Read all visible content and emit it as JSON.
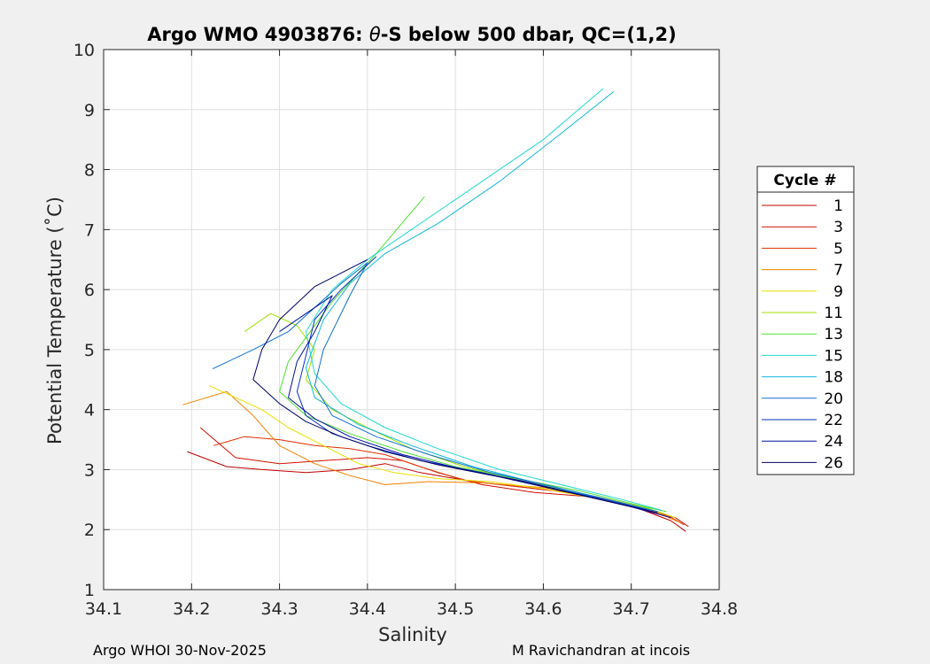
{
  "chart_data": {
    "type": "line",
    "title_prefix": "Argo WMO 4903876: ",
    "title_theta": "θ",
    "title_suffix": "-S below 500 dbar,  QC=(1,2)",
    "xlabel": "Salinity",
    "ylabel": "Potential Temperature (˚C)",
    "xlim": [
      34.1,
      34.8
    ],
    "ylim": [
      1,
      10
    ],
    "xticks": [
      34.1,
      34.2,
      34.3,
      34.4,
      34.5,
      34.6,
      34.7,
      34.8
    ],
    "yticks": [
      1,
      2,
      3,
      4,
      5,
      6,
      7,
      8,
      9,
      10
    ],
    "grid": true,
    "legend": {
      "title": "Cycle #",
      "placement": "right-outside",
      "entries": [
        "1",
        "3",
        "5",
        "7",
        "9",
        "11",
        "13",
        "15",
        "18",
        "20",
        "22",
        "24",
        "26"
      ]
    },
    "series": [
      {
        "name": "1",
        "color": "#c00000",
        "x": [
          34.195,
          34.24,
          34.28,
          34.33,
          34.38,
          34.42,
          34.46,
          34.52,
          34.58,
          34.64,
          34.7,
          34.745,
          34.762
        ],
        "y": [
          3.3,
          3.05,
          3.0,
          2.95,
          3.0,
          3.1,
          2.95,
          2.8,
          2.7,
          2.6,
          2.4,
          2.15,
          1.97
        ]
      },
      {
        "name": "3",
        "color": "#d01000",
        "x": [
          34.21,
          34.25,
          34.3,
          34.35,
          34.4,
          34.44,
          34.48,
          34.53,
          34.59,
          34.65,
          34.71,
          34.75,
          34.765
        ],
        "y": [
          3.7,
          3.2,
          3.1,
          3.15,
          3.2,
          3.15,
          2.95,
          2.75,
          2.62,
          2.55,
          2.35,
          2.2,
          2.05
        ]
      },
      {
        "name": "5",
        "color": "#e03000",
        "x": [
          34.225,
          34.26,
          34.3,
          34.34,
          34.38,
          34.42,
          34.46,
          34.51,
          34.57,
          34.63,
          34.69,
          34.74,
          34.76
        ],
        "y": [
          3.4,
          3.55,
          3.5,
          3.4,
          3.35,
          3.25,
          3.05,
          2.82,
          2.72,
          2.62,
          2.45,
          2.25,
          2.08
        ]
      },
      {
        "name": "7",
        "color": "#f08000",
        "x": [
          34.19,
          34.24,
          34.27,
          34.3,
          34.34,
          34.38,
          34.42,
          34.47,
          34.53,
          34.6,
          34.66,
          34.72,
          34.755
        ],
        "y": [
          4.08,
          4.3,
          3.9,
          3.4,
          3.1,
          2.9,
          2.75,
          2.8,
          2.78,
          2.7,
          2.55,
          2.35,
          2.12
        ]
      },
      {
        "name": "9",
        "color": "#e8e000",
        "x": [
          34.22,
          34.25,
          34.28,
          34.31,
          34.35,
          34.39,
          34.43,
          34.48,
          34.54,
          34.6,
          34.66,
          34.72,
          34.75
        ],
        "y": [
          4.4,
          4.2,
          4.0,
          3.7,
          3.4,
          3.1,
          2.95,
          2.85,
          2.8,
          2.68,
          2.52,
          2.35,
          2.2
        ]
      },
      {
        "name": "11",
        "color": "#a0e000",
        "x": [
          34.26,
          34.29,
          34.32,
          34.34,
          34.33,
          34.36,
          34.4,
          34.45,
          34.51,
          34.58,
          34.65,
          34.72,
          34.74
        ],
        "y": [
          5.3,
          5.6,
          5.4,
          5.0,
          4.5,
          4.0,
          3.7,
          3.35,
          3.05,
          2.8,
          2.58,
          2.35,
          2.25
        ]
      },
      {
        "name": "13",
        "color": "#50e030",
        "x": [
          34.465,
          34.41,
          34.36,
          34.33,
          34.31,
          34.3,
          34.33,
          34.38,
          34.44,
          34.5,
          34.57,
          34.64,
          34.71,
          34.74
        ],
        "y": [
          7.55,
          6.6,
          5.8,
          5.2,
          4.8,
          4.3,
          3.9,
          3.6,
          3.3,
          3.05,
          2.85,
          2.65,
          2.4,
          2.3
        ]
      },
      {
        "name": "15",
        "color": "#20d8d0",
        "x": [
          34.668,
          34.6,
          34.52,
          34.45,
          34.4,
          34.36,
          34.33,
          34.34,
          34.37,
          34.42,
          34.48,
          34.55,
          34.62,
          34.69,
          34.735
        ],
        "y": [
          9.35,
          8.5,
          7.7,
          7.0,
          6.5,
          6.0,
          5.3,
          4.6,
          4.1,
          3.7,
          3.35,
          3.0,
          2.75,
          2.5,
          2.32
        ]
      },
      {
        "name": "18",
        "color": "#10b8d8",
        "x": [
          34.68,
          34.62,
          34.55,
          34.48,
          34.42,
          34.38,
          34.35,
          34.33,
          34.34,
          34.39,
          34.45,
          34.52,
          34.6,
          34.67,
          34.73
        ],
        "y": [
          9.3,
          8.6,
          7.8,
          7.1,
          6.6,
          6.1,
          5.5,
          4.7,
          4.2,
          3.75,
          3.4,
          3.05,
          2.75,
          2.5,
          2.3
        ]
      },
      {
        "name": "20",
        "color": "#1070d0",
        "x": [
          34.224,
          34.27,
          34.31,
          34.34,
          34.37,
          34.4,
          34.38,
          34.35,
          34.34,
          34.36,
          34.41,
          34.47,
          34.54,
          34.61,
          34.68,
          34.73
        ],
        "y": [
          4.68,
          5.0,
          5.3,
          5.7,
          6.1,
          6.45,
          5.9,
          5.0,
          4.4,
          3.9,
          3.55,
          3.25,
          2.95,
          2.72,
          2.48,
          2.3
        ]
      },
      {
        "name": "22",
        "color": "#0830c0",
        "x": [
          34.41,
          34.37,
          34.34,
          34.33,
          34.32,
          34.33,
          34.36,
          34.4,
          34.46,
          34.53,
          34.6,
          34.67,
          34.72
        ],
        "y": [
          6.55,
          6.0,
          5.5,
          4.9,
          4.3,
          3.9,
          3.6,
          3.4,
          3.15,
          2.95,
          2.72,
          2.5,
          2.32
        ]
      },
      {
        "name": "24",
        "color": "#0010a0",
        "x": [
          34.3,
          34.33,
          34.36,
          34.34,
          34.32,
          34.31,
          34.34,
          34.38,
          34.44,
          34.51,
          34.58,
          34.65,
          34.7,
          34.745
        ],
        "y": [
          5.3,
          5.6,
          5.9,
          5.3,
          4.8,
          4.2,
          3.85,
          3.55,
          3.25,
          3.0,
          2.8,
          2.55,
          2.38,
          2.2
        ]
      },
      {
        "name": "26",
        "color": "#000068",
        "x": [
          34.4,
          34.34,
          34.3,
          34.28,
          34.27,
          34.3,
          34.33,
          34.37,
          34.42,
          34.48,
          34.55,
          34.62,
          34.68,
          34.73
        ],
        "y": [
          6.5,
          6.05,
          5.5,
          5.0,
          4.5,
          4.1,
          3.8,
          3.55,
          3.3,
          3.08,
          2.88,
          2.65,
          2.45,
          2.28
        ]
      }
    ]
  },
  "footer": {
    "left": "Argo WHOI 30-Nov-2025",
    "right": "M Ravichandran at incois"
  }
}
